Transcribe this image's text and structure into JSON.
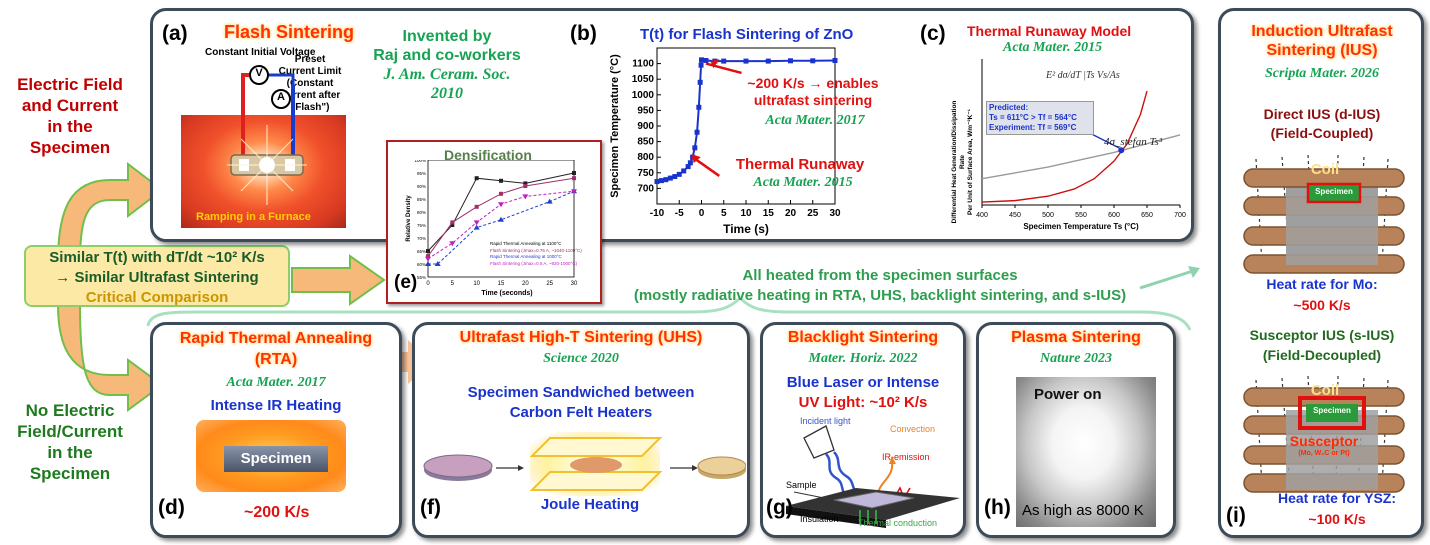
{
  "side": {
    "electric_lines": [
      "Electric Field",
      "and Current",
      "in the",
      "Specimen"
    ],
    "no_electric_lines": [
      "No Electric",
      "Field/Current",
      "in the",
      "Specimen"
    ]
  },
  "comparison": {
    "line1": "Similar T(t) with dT/dt ~10² K/s",
    "line2": "→ Similar Ultrafast Sintering",
    "line3": "Critical Comparison"
  },
  "heated_note": {
    "line1": "All heated from the specimen surfaces",
    "line2": "(mostly radiative heating in RTA, UHS, backlight sintering, and s-IUS)"
  },
  "panel_a": {
    "label": "(a)",
    "title": "Flash Sintering",
    "invented": [
      "Invented by",
      "Raj and co-workers",
      "J. Am. Ceram. Soc.",
      "2010"
    ],
    "voltage_note": "Constant Initial Voltage",
    "current_note": [
      "Preset",
      "Current Limit",
      "(Constant",
      "Current after",
      "\"Flash\")"
    ],
    "v_symbol": "V",
    "a_symbol": "A",
    "furnace_caption": "Ramping in a Furnace"
  },
  "panel_b": {
    "label": "(b)",
    "title": "T(t) for Flash Sintering of ZnO",
    "note1": [
      "~200 K/s → enables",
      "ultrafast sintering"
    ],
    "ref1": "Acta Mater. 2017",
    "note2": "Thermal Runaway",
    "ref2": "Acta Mater. 2015"
  },
  "panel_c": {
    "label": "(c)",
    "title": "Thermal Runaway Model",
    "ref": "Acta Mater. 2015",
    "eq1": "E² dσ/dT |Ts  Vs/As",
    "eq2": "4σ_stefan Ts³",
    "box": [
      "Predicted:",
      "Ts = 611°C  > Tf = 564°C",
      "Experiment: Tf = 569°C"
    ],
    "ylabel": [
      "Differential Heat Generation/Dissipation Rate",
      "Per Unit of Surface Area, Wm⁻²K⁻¹"
    ]
  },
  "panel_e": {
    "label": "(e)",
    "title": "Densification",
    "legend": [
      "Rapid Thermal Annealing at 1100°C",
      "Flash Sintering (Jmax=0.75 A, ~1040-1100°C)",
      "Rapid Thermal Annealing at 1000°C",
      "Flash Sintering (Jmax=0.5 A, ~920-1000°C)"
    ]
  },
  "panel_i": {
    "label": "(i)",
    "title": [
      "Induction Ultrafast",
      "Sintering (IUS)"
    ],
    "ref": "Scripta Mater. 2026",
    "direct": [
      "Direct IUS (d-IUS)",
      "(Field-Coupled)"
    ],
    "coil": "Coil",
    "specimen": "Specimen",
    "rate_mo": [
      "Heat rate for Mo:",
      "~500 K/s"
    ],
    "susceptor_title": [
      "Susceptor IUS (s-IUS)",
      "(Field-Decoupled)"
    ],
    "susceptor": "Susceptor",
    "susceptor_sub": "(Mo, W₂C or Pt)",
    "rate_ysz": [
      "Heat rate for YSZ:",
      "~100 K/s"
    ]
  },
  "panel_d": {
    "label": "(d)",
    "title": [
      "Rapid Thermal Annealing",
      "(RTA)"
    ],
    "ref": "Acta Mater. 2017",
    "subtitle": "Intense IR Heating",
    "specimen": "Specimen",
    "rate": "~200 K/s"
  },
  "panel_f": {
    "label": "(f)",
    "title": "Ultrafast High-T Sintering (UHS)",
    "ref": "Science 2020",
    "subtitle": [
      "Specimen Sandwiched between",
      "Carbon Felt Heaters"
    ],
    "joule": "Joule Heating"
  },
  "panel_g": {
    "label": "(g)",
    "title": "Blacklight Sintering",
    "ref": "Mater. Horiz. 2022",
    "subtitle1": "Blue Laser or Intense",
    "subtitle2": "UV Light: ~10² K/s",
    "incident": "Incident light",
    "convection": "Convection",
    "ir": "IR-emission",
    "sample": "Sample",
    "insulation": "Insulation",
    "conduction": "Thermal conduction"
  },
  "panel_h": {
    "label": "(h)",
    "title": "Plasma Sintering",
    "ref": "Nature 2023",
    "power": "Power on",
    "high": "As high as 8000 K"
  },
  "chart_data": [
    {
      "type": "line",
      "title": "T(t) for Flash Sintering of ZnO",
      "xlabel": "Time (s)",
      "ylabel": "Specimen Temperature (°C)",
      "xlim": [
        -10,
        30
      ],
      "ylim": [
        650,
        1150
      ],
      "xticks": [
        -10,
        -5,
        0,
        5,
        10,
        15,
        20,
        25,
        30
      ],
      "yticks": [
        700,
        750,
        800,
        850,
        900,
        950,
        1000,
        1050,
        1100
      ],
      "x": [
        -10,
        -9,
        -8,
        -7,
        -6,
        -5,
        -4,
        -3,
        -2.5,
        -2,
        -1.5,
        -1,
        -0.6,
        -0.3,
        -0.1,
        0,
        1,
        3,
        5,
        10,
        15,
        20,
        25,
        30
      ],
      "y": [
        722,
        725,
        728,
        733,
        738,
        745,
        756,
        770,
        782,
        800,
        830,
        880,
        960,
        1040,
        1095,
        1112,
        1110,
        1108,
        1108,
        1108,
        1108,
        1109,
        1109,
        1110
      ]
    },
    {
      "type": "line",
      "title": "Thermal Runaway Model",
      "xlabel": "Specimen Temperature Ts (°C)",
      "xlim": [
        400,
        700
      ],
      "xticks": [
        400,
        450,
        500,
        550,
        600,
        650,
        700
      ],
      "ylim": [
        0,
        1
      ],
      "series": [
        {
          "name": "generation",
          "x": [
            400,
            450,
            500,
            540,
            570,
            600,
            620,
            640,
            650
          ],
          "y": [
            0.02,
            0.03,
            0.06,
            0.11,
            0.18,
            0.3,
            0.42,
            0.62,
            0.78
          ]
        },
        {
          "name": "dissipation",
          "x": [
            400,
            450,
            500,
            550,
            600,
            650,
            700
          ],
          "y": [
            0.18,
            0.22,
            0.26,
            0.31,
            0.36,
            0.42,
            0.48
          ]
        }
      ]
    },
    {
      "type": "scatter",
      "title": "Densification",
      "xlabel": "Time (seconds)",
      "ylabel": "Relative Density",
      "xlim": [
        0,
        30
      ],
      "ylim": [
        55,
        100
      ],
      "xticks": [
        0,
        5,
        10,
        15,
        20,
        25,
        30
      ],
      "yticks": [
        55,
        60,
        65,
        70,
        75,
        80,
        85,
        90,
        95,
        100
      ],
      "series": [
        {
          "name": "Rapid Thermal Annealing at 1100°C",
          "x": [
            0,
            5,
            10,
            15,
            20,
            30
          ],
          "y": [
            65,
            75,
            93,
            92,
            91,
            95
          ]
        },
        {
          "name": "Flash Sintering (Jmax=0.75 A)",
          "x": [
            0,
            5,
            10,
            15,
            20,
            30
          ],
          "y": [
            63,
            76,
            82,
            87,
            90,
            93
          ]
        },
        {
          "name": "Rapid Thermal Annealing at 1000°C",
          "x": [
            0,
            2,
            10,
            15,
            25,
            30
          ],
          "y": [
            60,
            60,
            74,
            77,
            84,
            88
          ]
        },
        {
          "name": "Flash Sintering (Jmax=0.5 A)",
          "x": [
            0,
            5,
            10,
            15,
            20,
            30
          ],
          "y": [
            62,
            68,
            76,
            83,
            86,
            88
          ]
        }
      ]
    }
  ]
}
